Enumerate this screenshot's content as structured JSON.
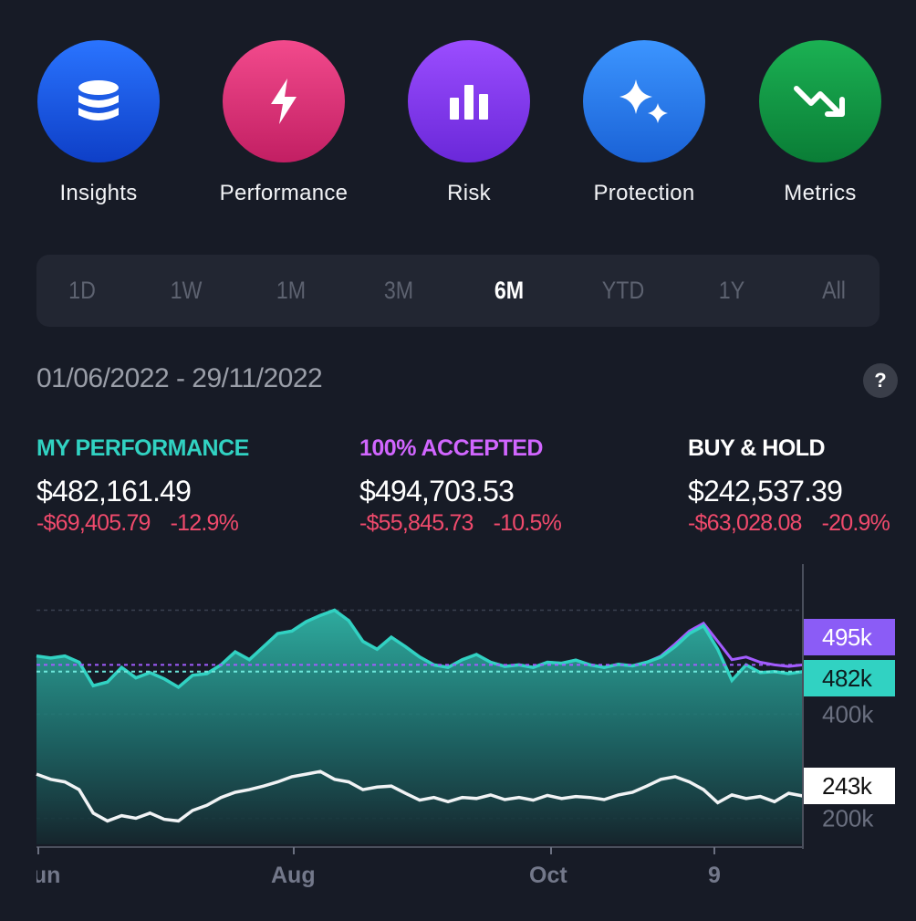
{
  "quick_actions": [
    {
      "label": "Insights",
      "icon": "database-icon",
      "color_top": "#2a74ff",
      "color_bottom": "#0e3fc7"
    },
    {
      "label": "Performance",
      "icon": "lightning-icon",
      "color_top": "#f24a8c",
      "color_bottom": "#c21f63"
    },
    {
      "label": "Risk",
      "icon": "bar-chart-icon",
      "color_top": "#9b4dff",
      "color_bottom": "#6a28d9"
    },
    {
      "label": "Protection",
      "icon": "sparkles-icon",
      "color_top": "#3c95ff",
      "color_bottom": "#1a62d6"
    },
    {
      "label": "Metrics",
      "icon": "trend-down-icon",
      "color_top": "#1bb153",
      "color_bottom": "#0a7d36"
    }
  ],
  "time_ranges": [
    "1D",
    "1W",
    "1M",
    "3M",
    "6M",
    "YTD",
    "1Y",
    "All"
  ],
  "selected_range": "6M",
  "date_range": "01/06/2022 - 29/11/2022",
  "help_label": "?",
  "stats": [
    {
      "title": "MY PERFORMANCE",
      "color": "#31d2c2",
      "value": "$482,161.49",
      "change": "-$69,405.79",
      "change_pct": "-12.9%"
    },
    {
      "title": "100% ACCEPTED",
      "color": "#d166ff",
      "value": "$494,703.53",
      "change": "-$55,845.73",
      "change_pct": "-10.5%"
    },
    {
      "title": "BUY & HOLD",
      "color": "#ffffff",
      "value": "$242,537.39",
      "change": "-$63,028.08",
      "change_pct": "-20.9%"
    }
  ],
  "chart_data": {
    "type": "area",
    "x_tick_labels": [
      "Jun",
      "Aug",
      "Oct",
      "9"
    ],
    "y_tick_labels": [
      "400k",
      "200k"
    ],
    "ylim": [
      150000,
      650000
    ],
    "series": [
      {
        "name": "MY PERFORMANCE",
        "color": "#31d2c2",
        "values": [
          512000,
          508000,
          512000,
          500000,
          455000,
          462000,
          490000,
          470000,
          480000,
          468000,
          452000,
          475000,
          478000,
          495000,
          520000,
          505000,
          530000,
          555000,
          560000,
          578000,
          590000,
          600000,
          580000,
          540000,
          525000,
          548000,
          530000,
          510000,
          495000,
          490000,
          505000,
          515000,
          500000,
          492000,
          495000,
          490000,
          500000,
          498000,
          504000,
          495000,
          490000,
          496000,
          493000,
          500000,
          510000,
          530000,
          555000,
          570000,
          525000,
          465000,
          495000,
          480000,
          482000,
          478000,
          482000
        ]
      },
      {
        "name": "100% ACCEPTED",
        "color": "#a35cff",
        "values": [
          512000,
          508000,
          512000,
          500000,
          455000,
          462000,
          490000,
          470000,
          480000,
          468000,
          452000,
          475000,
          478000,
          495000,
          520000,
          505000,
          530000,
          555000,
          560000,
          578000,
          590000,
          600000,
          580000,
          540000,
          525000,
          548000,
          530000,
          510000,
          495000,
          490000,
          505000,
          515000,
          500000,
          492000,
          495000,
          490000,
          500000,
          498000,
          504000,
          495000,
          490000,
          496000,
          493000,
          500000,
          512000,
          535000,
          560000,
          575000,
          540000,
          505000,
          510000,
          500000,
          495000,
          492000,
          495000
        ]
      },
      {
        "name": "BUY & HOLD",
        "color": "#f1f3f5",
        "values": [
          285000,
          275000,
          270000,
          255000,
          210000,
          195000,
          205000,
          200000,
          210000,
          198000,
          195000,
          215000,
          225000,
          240000,
          250000,
          255000,
          262000,
          270000,
          280000,
          285000,
          290000,
          275000,
          270000,
          255000,
          260000,
          262000,
          248000,
          235000,
          240000,
          232000,
          240000,
          238000,
          245000,
          236000,
          240000,
          235000,
          244000,
          238000,
          242000,
          240000,
          236000,
          245000,
          250000,
          262000,
          275000,
          280000,
          270000,
          255000,
          230000,
          245000,
          238000,
          242000,
          232000,
          248000,
          243000
        ]
      }
    ],
    "price_tags": [
      {
        "label": "495k",
        "bg": "#8b5cf6",
        "fg": "#ffffff"
      },
      {
        "label": "482k",
        "bg": "#31d2c2",
        "fg": "#0d1b1e"
      },
      {
        "label": "243k",
        "bg": "#ffffff",
        "fg": "#111111"
      }
    ]
  }
}
